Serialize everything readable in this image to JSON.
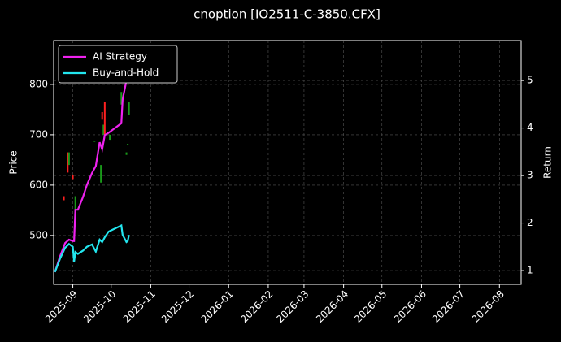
{
  "chart_data": {
    "type": "candlestick-line",
    "title": "cnoption [IO2511-C-3850.CFX]",
    "y_label": "Price",
    "y2_label": "Return",
    "grid": true,
    "legend": "upper left",
    "xlim": [
      "2025-08-17",
      "2026-08-18"
    ],
    "xticks": [
      "2025-09",
      "2025-10",
      "2025-11",
      "2025-12",
      "2026-01",
      "2026-02",
      "2026-03",
      "2026-04",
      "2026-05",
      "2026-06",
      "2026-07",
      "2026-08"
    ],
    "ylim": [
      403,
      887
    ],
    "yticks": [
      500,
      600,
      700,
      800
    ],
    "y2lim": [
      0.71,
      5.84
    ],
    "y2ticks": [
      1,
      2,
      3,
      4,
      5
    ],
    "candles": {
      "up_color": "#ff2020",
      "down_color": "#1a9a1a",
      "x": [
        "2025-08-25",
        "2025-08-28",
        "2025-08-29",
        "2025-09-01",
        "2025-09-03",
        "2025-09-18",
        "2025-09-23",
        "2025-09-24",
        "2025-09-25",
        "2025-09-26",
        "2025-09-30",
        "2025-10-09",
        "2025-10-13",
        "2025-10-14",
        "2025-10-15"
      ],
      "open": [
        570,
        625,
        665,
        612,
        578,
        688,
        640,
        730,
        720,
        700,
        700,
        785,
        665,
        682,
        765
      ],
      "close": [
        578,
        665,
        640,
        620,
        545,
        686,
        605,
        745,
        700,
        765,
        690,
        760,
        660,
        680,
        740
      ]
    },
    "x": [
      "2025-08-18",
      "2025-08-22",
      "2025-08-26",
      "2025-08-29",
      "2025-09-01",
      "2025-09-02",
      "2025-09-03",
      "2025-09-05",
      "2025-09-09",
      "2025-09-12",
      "2025-09-16",
      "2025-09-19",
      "2025-09-22",
      "2025-09-24",
      "2025-09-26",
      "2025-09-29",
      "2025-10-09",
      "2025-10-10",
      "2025-10-13",
      "2025-10-14",
      "2025-10-15"
    ],
    "series": [
      {
        "name": "AI Strategy",
        "color": "#ee22ee",
        "axis": "y2",
        "values": [
          0.97,
          1.3,
          1.58,
          1.65,
          1.62,
          1.62,
          2.28,
          2.28,
          2.55,
          2.8,
          3.05,
          3.2,
          3.7,
          3.55,
          3.85,
          3.9,
          4.1,
          4.6,
          5.0,
          5.3,
          5.6
        ]
      },
      {
        "name": "Buy-and-Hold",
        "color": "#22e5ee",
        "axis": "y2",
        "values": [
          0.97,
          1.25,
          1.48,
          1.56,
          1.5,
          1.19,
          1.39,
          1.35,
          1.42,
          1.5,
          1.55,
          1.4,
          1.65,
          1.6,
          1.7,
          1.82,
          1.95,
          1.75,
          1.6,
          1.62,
          1.75
        ]
      }
    ]
  }
}
